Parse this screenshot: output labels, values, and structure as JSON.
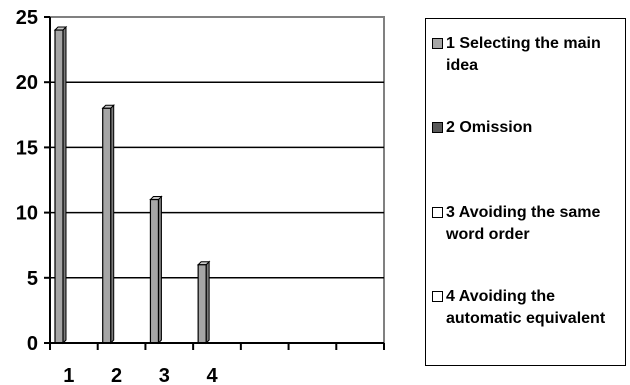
{
  "chart_data": {
    "type": "bar",
    "categories": [
      "1",
      "2",
      "3",
      "4"
    ],
    "values": [
      24,
      18,
      11,
      6
    ],
    "ylim": [
      0,
      25
    ],
    "yticks": [
      "0",
      "5",
      "10",
      "15",
      "20",
      "25"
    ],
    "grid": true,
    "legend_position": "right",
    "bar_color": "#a6a6a6",
    "legend": [
      {
        "label": "1 Selecting the main idea",
        "color": "#a6a6a6"
      },
      {
        "label": "2 Omission",
        "color": "#595959"
      },
      {
        "label": "3 Avoiding the same word order",
        "color": "#ffffff"
      },
      {
        "label": "4 Avoiding the automatic equivalent",
        "color": "#ffffff"
      }
    ]
  }
}
